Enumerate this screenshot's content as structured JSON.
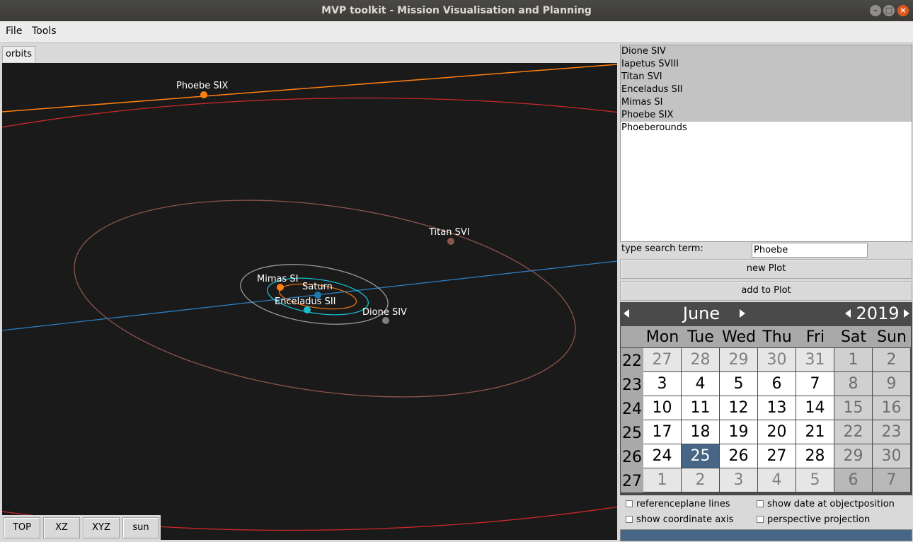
{
  "window": {
    "title": "MVP toolkit - Mission Visualisation and Planning"
  },
  "menu": {
    "file": "File",
    "tools": "Tools"
  },
  "tab": {
    "label": "orbits"
  },
  "plot": {
    "labels": {
      "phoebe": "Phoebe SIX",
      "titan": "Titan SVI",
      "mimas": "Mimas SI",
      "saturn": "Saturn",
      "enceladus": "Enceladus SII",
      "dione": "Dione SIV"
    },
    "colors": {
      "background": "#1a1a1a",
      "phoebe": "#ff7f0e",
      "titan": "#8c564b",
      "mimas": "#ff7f0e",
      "saturn": "#1f77b4",
      "enceladus": "#17becf",
      "dione": "#7f7f7f",
      "iapetus": "#d62728"
    },
    "view_buttons": [
      "TOP",
      "XZ",
      "XYZ",
      "sun"
    ]
  },
  "object_list": {
    "items": [
      {
        "label": "Dione SIV",
        "selected": true
      },
      {
        "label": "Iapetus SVIII",
        "selected": true
      },
      {
        "label": "Titan SVI",
        "selected": true
      },
      {
        "label": "Enceladus SII",
        "selected": true
      },
      {
        "label": "Mimas SI",
        "selected": true
      },
      {
        "label": "Phoebe SIX",
        "selected": true
      },
      {
        "label": "Phoeberounds",
        "selected": false
      }
    ]
  },
  "search": {
    "label": "type search term:",
    "value": "Phoebe"
  },
  "buttons": {
    "new_plot": "new Plot",
    "add_to_plot": "add to Plot"
  },
  "calendar": {
    "month": "June",
    "year": "2019",
    "weekdays": [
      "Mon",
      "Tue",
      "Wed",
      "Thu",
      "Fri",
      "Sat",
      "Sun"
    ],
    "weeks": [
      {
        "num": "22",
        "days": [
          "27",
          "28",
          "29",
          "30",
          "31",
          "1",
          "2"
        ]
      },
      {
        "num": "23",
        "days": [
          "3",
          "4",
          "5",
          "6",
          "7",
          "8",
          "9"
        ]
      },
      {
        "num": "24",
        "days": [
          "10",
          "11",
          "12",
          "13",
          "14",
          "15",
          "16"
        ]
      },
      {
        "num": "25",
        "days": [
          "17",
          "18",
          "19",
          "20",
          "21",
          "22",
          "23"
        ]
      },
      {
        "num": "26",
        "days": [
          "24",
          "25",
          "26",
          "27",
          "28",
          "29",
          "30"
        ]
      },
      {
        "num": "27",
        "days": [
          "1",
          "2",
          "3",
          "4",
          "5",
          "6",
          "7"
        ]
      }
    ],
    "selected_day": "25",
    "colors": {
      "header": "#4a4a4a",
      "selected": "#476585"
    }
  },
  "options": {
    "referenceplane_lines": {
      "label": "referenceplane lines",
      "checked": false
    },
    "show_date": {
      "label": "show date at objectposition",
      "checked": false
    },
    "show_axis": {
      "label": "show coordinate axis",
      "checked": false
    },
    "perspective": {
      "label": "perspective projection",
      "checked": false
    }
  }
}
